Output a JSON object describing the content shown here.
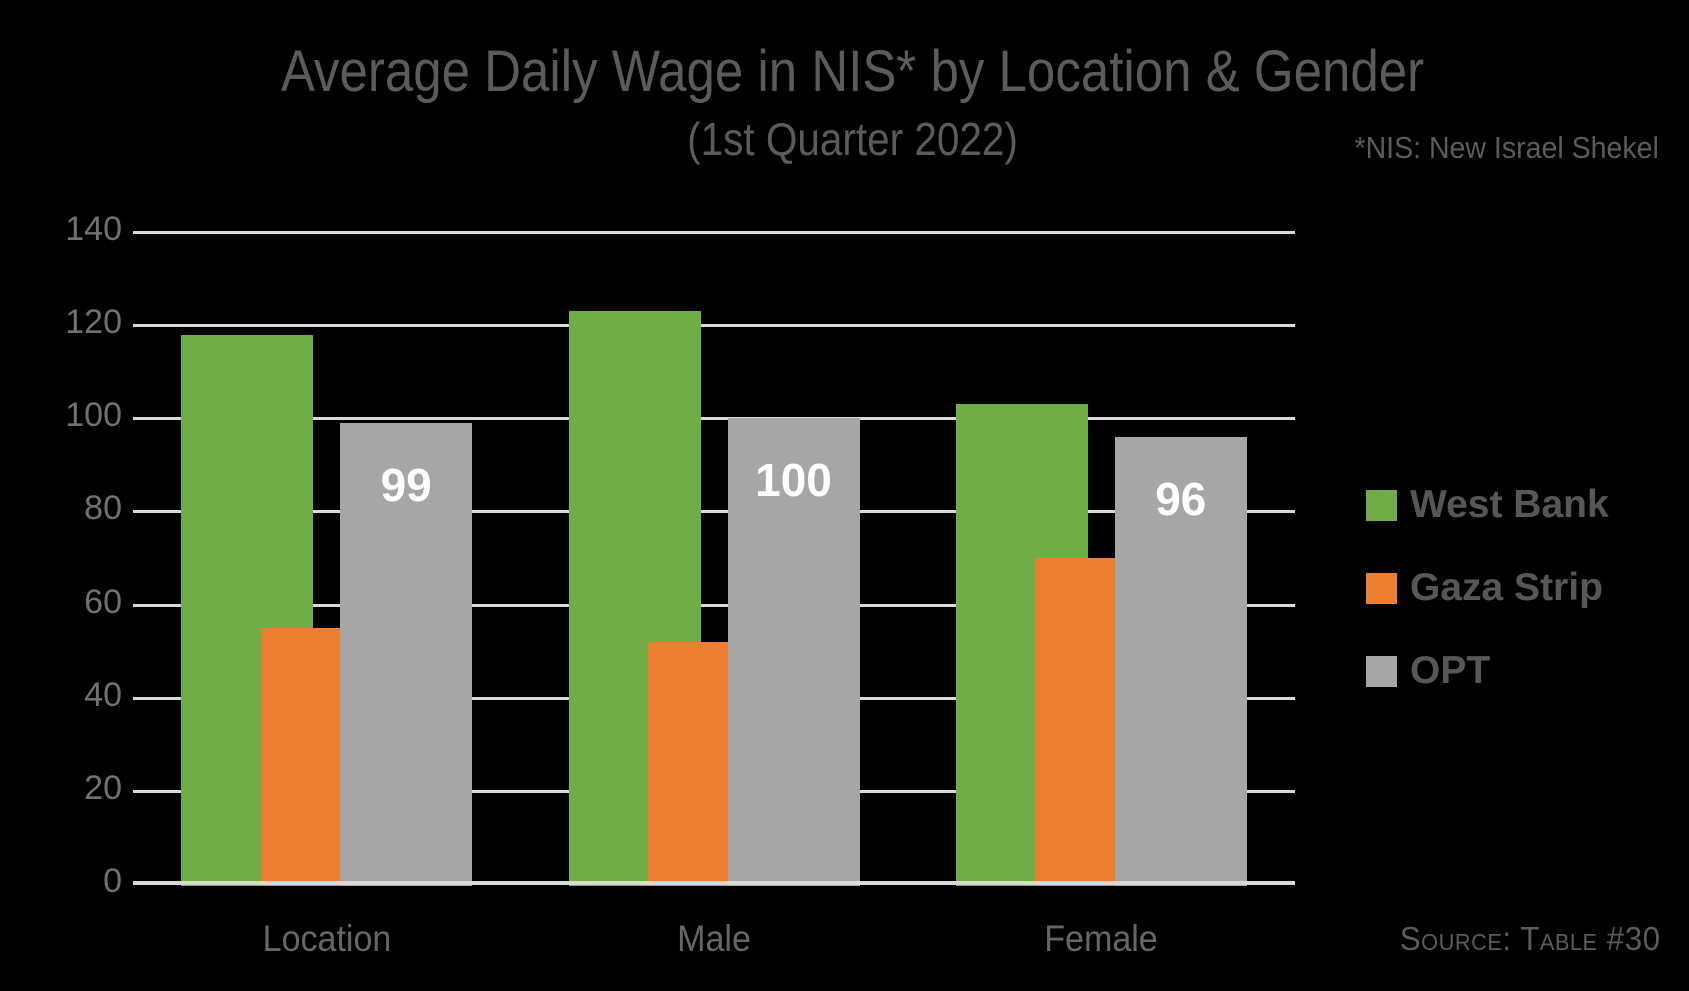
{
  "header": {
    "title": "Average Daily Wage in NIS* by Location & Gender",
    "subtitle": "(1st Quarter 2022)",
    "note": "*NIS: New Israel Shekel"
  },
  "footer": {
    "source": "Source: Table #30"
  },
  "chart_data": {
    "type": "bar",
    "title": "Average Daily Wage in NIS* by Location & Gender (1st Quarter 2022)",
    "categories": [
      "Location",
      "Male",
      "Female"
    ],
    "series": [
      {
        "name": "West Bank",
        "color": "#70AD47",
        "values": [
          118,
          123,
          103
        ],
        "data_labels": [
          "",
          "",
          ""
        ]
      },
      {
        "name": "Gaza Strip",
        "color": "#ED7D31",
        "values": [
          55,
          52,
          70
        ],
        "data_labels": [
          "",
          "",
          ""
        ]
      },
      {
        "name": "OPT",
        "color": "#A6A6A6",
        "values": [
          99,
          100,
          96
        ],
        "data_labels": [
          "99",
          "100",
          "96"
        ],
        "label_color": "#FFFFFF"
      }
    ],
    "xlabel": "",
    "ylabel": "",
    "ylim": [
      0,
      140
    ],
    "yticks": [
      0,
      20,
      40,
      60,
      80,
      100,
      120,
      140
    ],
    "grid": true,
    "gridline_color": "#D9D9D9",
    "axis_color": "#D9D9D9",
    "legend_position": "right",
    "legend_entries": [
      "West Bank",
      "Gaza Strip",
      "OPT"
    ]
  }
}
